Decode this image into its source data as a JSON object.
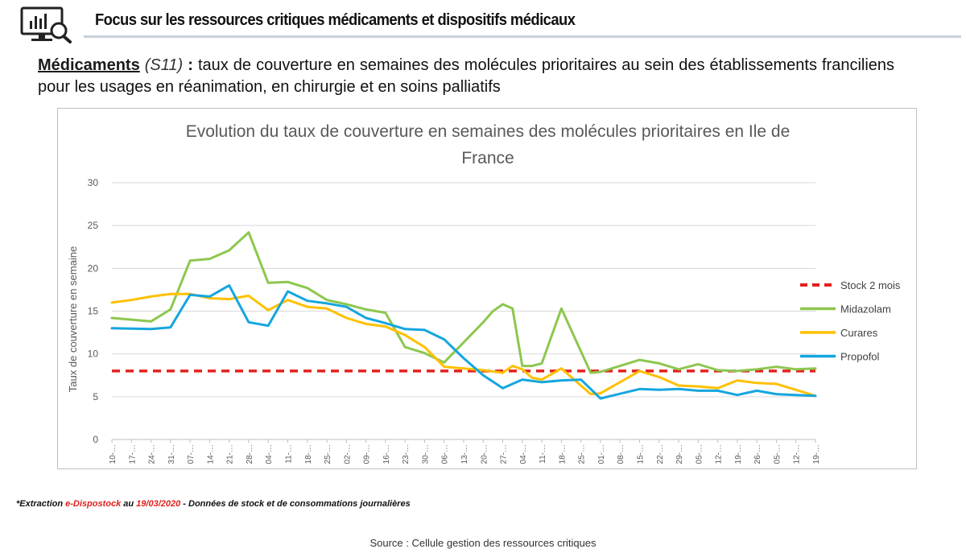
{
  "header": {
    "title": "Focus sur les ressources critiques médicaments  et dispositifs médicaux",
    "icon": "monitor-analytics-icon"
  },
  "intro": {
    "lead": "Médicaments",
    "code": "(S11)",
    "separator": ":",
    "text": "taux de couverture en semaines des molécules prioritaires au sein des établissements franciliens pour les usages en réanimation, en chirurgie et en soins palliatifs"
  },
  "chart_data": {
    "type": "line",
    "title": "Evolution du taux de couverture en semaines des molécules prioritaires en Ile de France",
    "xlabel": "",
    "ylabel": "Taux de couverture en semaine",
    "ylim": [
      0,
      30
    ],
    "yticks": [
      0,
      5,
      10,
      15,
      20,
      25,
      30
    ],
    "grid": true,
    "legend_position": "right",
    "categories": [
      "10-…",
      "17-…",
      "24-…",
      "31-…",
      "07-…",
      "14-…",
      "21-…",
      "28-…",
      "04-…",
      "11-…",
      "18-…",
      "25-…",
      "02-…",
      "09-…",
      "16-…",
      "23-…",
      "30-…",
      "06-…",
      "13-…",
      "20-…",
      "27-…",
      "04-…",
      "11-…",
      "18-…",
      "25-…",
      "01-…",
      "08-…",
      "15-…",
      "22-…",
      "29-…",
      "05-…",
      "12-…",
      "19-…",
      "26-…",
      "05-…",
      "12-…",
      "19-…"
    ],
    "series": [
      {
        "name": "Stock 2 mois",
        "color": "#e3211c",
        "dashed": true,
        "points": [
          [
            0,
            8
          ],
          [
            36,
            8
          ]
        ]
      },
      {
        "name": "Midazolam",
        "color": "#8dc74f",
        "dashed": false,
        "points": [
          [
            0,
            14.2
          ],
          [
            2,
            13.8
          ],
          [
            3,
            15.2
          ],
          [
            4,
            20.9
          ],
          [
            5,
            21.1
          ],
          [
            6,
            22.1
          ],
          [
            7,
            24.2
          ],
          [
            8,
            18.3
          ],
          [
            9,
            18.4
          ],
          [
            10,
            17.7
          ],
          [
            11,
            16.3
          ],
          [
            12,
            15.8
          ],
          [
            13,
            15.2
          ],
          [
            14,
            14.8
          ],
          [
            15,
            10.8
          ],
          [
            16,
            10.1
          ],
          [
            17,
            9.0
          ],
          [
            19,
            13.7
          ],
          [
            19.5,
            15.0
          ],
          [
            20,
            15.8
          ],
          [
            20.5,
            15.3
          ],
          [
            21,
            8.6
          ],
          [
            21.5,
            8.6
          ],
          [
            22,
            8.9
          ],
          [
            23,
            15.3
          ],
          [
            24.5,
            7.8
          ],
          [
            25,
            7.9
          ],
          [
            27,
            9.3
          ],
          [
            28,
            8.9
          ],
          [
            29,
            8.2
          ],
          [
            30,
            8.8
          ],
          [
            31,
            8.1
          ],
          [
            32,
            8.0
          ],
          [
            33,
            8.2
          ],
          [
            34,
            8.5
          ],
          [
            35,
            8.2
          ],
          [
            36,
            8.3
          ]
        ]
      },
      {
        "name": "Curares",
        "color": "#ffc000",
        "dashed": false,
        "points": [
          [
            0,
            16.0
          ],
          [
            1,
            16.3
          ],
          [
            2,
            16.7
          ],
          [
            3,
            17.0
          ],
          [
            4,
            17.0
          ],
          [
            5,
            16.5
          ],
          [
            6,
            16.4
          ],
          [
            7,
            16.8
          ],
          [
            8,
            15.1
          ],
          [
            9,
            16.3
          ],
          [
            10,
            15.5
          ],
          [
            11,
            15.3
          ],
          [
            12,
            14.2
          ],
          [
            13,
            13.5
          ],
          [
            14,
            13.2
          ],
          [
            15,
            12.2
          ],
          [
            16,
            10.8
          ],
          [
            17,
            8.5
          ],
          [
            18,
            8.3
          ],
          [
            19,
            8.1
          ],
          [
            20,
            7.8
          ],
          [
            20.5,
            8.6
          ],
          [
            21,
            8.2
          ],
          [
            21.5,
            7.2
          ],
          [
            22,
            7.0
          ],
          [
            23,
            8.3
          ],
          [
            24.5,
            5.3
          ],
          [
            25,
            5.4
          ],
          [
            27,
            8.0
          ],
          [
            28,
            7.3
          ],
          [
            29,
            6.3
          ],
          [
            30,
            6.2
          ],
          [
            31,
            6.0
          ],
          [
            32,
            6.9
          ],
          [
            33,
            6.6
          ],
          [
            34,
            6.5
          ],
          [
            35,
            5.8
          ],
          [
            36,
            5.1
          ]
        ]
      },
      {
        "name": "Propofol",
        "color": "#15a6de",
        "dashed": false,
        "points": [
          [
            0,
            13.0
          ],
          [
            2,
            12.9
          ],
          [
            3,
            13.1
          ],
          [
            4,
            16.9
          ],
          [
            5,
            16.7
          ],
          [
            6,
            18.0
          ],
          [
            7,
            13.7
          ],
          [
            8,
            13.3
          ],
          [
            9,
            17.3
          ],
          [
            10,
            16.2
          ],
          [
            11,
            15.9
          ],
          [
            12,
            15.5
          ],
          [
            13,
            14.2
          ],
          [
            14,
            13.6
          ],
          [
            15,
            12.9
          ],
          [
            16,
            12.8
          ],
          [
            17,
            11.7
          ],
          [
            18,
            9.5
          ],
          [
            19,
            7.5
          ],
          [
            20,
            6.0
          ],
          [
            21,
            7.0
          ],
          [
            22,
            6.7
          ],
          [
            23,
            6.9
          ],
          [
            24,
            7.0
          ],
          [
            25,
            4.8
          ],
          [
            27,
            5.9
          ],
          [
            28,
            5.8
          ],
          [
            29,
            5.9
          ],
          [
            30,
            5.7
          ],
          [
            31,
            5.7
          ],
          [
            32,
            5.2
          ],
          [
            33,
            5.7
          ],
          [
            34,
            5.3
          ],
          [
            35,
            5.2
          ],
          [
            36,
            5.1
          ]
        ]
      }
    ]
  },
  "footnote": {
    "prefix": "*Extraction ",
    "system": "e-Dispostock",
    "middle": " au ",
    "date": "19/03/2020",
    "suffix": " - Données de stock et de consommations journalières"
  },
  "source": "Source : Cellule gestion des ressources critiques"
}
